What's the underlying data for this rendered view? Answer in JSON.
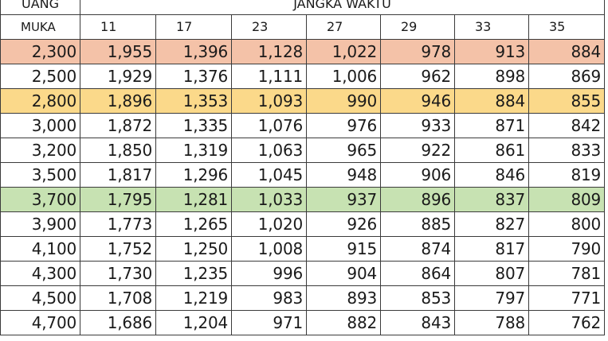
{
  "header": {
    "label_top": "UANG",
    "label_bottom": "MUKA",
    "span_label": "JANGKA WAKTU",
    "terms": [
      "11",
      "17",
      "23",
      "27",
      "29",
      "33",
      "35"
    ]
  },
  "colors": {
    "salmon": "#f4c2a8",
    "yellow": "#fbd98a",
    "green": "#c7e2b2",
    "border": "#3b3b3b"
  },
  "rows": [
    {
      "highlight": "salmon",
      "cells": [
        "2,300",
        "1,955",
        "1,396",
        "1,128",
        "1,022",
        "978",
        "913",
        "884"
      ]
    },
    {
      "highlight": "none",
      "cells": [
        "2,500",
        "1,929",
        "1,376",
        "1,111",
        "1,006",
        "962",
        "898",
        "869"
      ]
    },
    {
      "highlight": "yellow",
      "cells": [
        "2,800",
        "1,896",
        "1,353",
        "1,093",
        "990",
        "946",
        "884",
        "855"
      ]
    },
    {
      "highlight": "none",
      "cells": [
        "3,000",
        "1,872",
        "1,335",
        "1,076",
        "976",
        "933",
        "871",
        "842"
      ]
    },
    {
      "highlight": "none",
      "cells": [
        "3,200",
        "1,850",
        "1,319",
        "1,063",
        "965",
        "922",
        "861",
        "833"
      ]
    },
    {
      "highlight": "none",
      "cells": [
        "3,500",
        "1,817",
        "1,296",
        "1,045",
        "948",
        "906",
        "846",
        "819"
      ]
    },
    {
      "highlight": "green",
      "cells": [
        "3,700",
        "1,795",
        "1,281",
        "1,033",
        "937",
        "896",
        "837",
        "809"
      ]
    },
    {
      "highlight": "none",
      "cells": [
        "3,900",
        "1,773",
        "1,265",
        "1,020",
        "926",
        "885",
        "827",
        "800"
      ]
    },
    {
      "highlight": "none",
      "cells": [
        "4,100",
        "1,752",
        "1,250",
        "1,008",
        "915",
        "874",
        "817",
        "790"
      ]
    },
    {
      "highlight": "none",
      "cells": [
        "4,300",
        "1,730",
        "1,235",
        "996",
        "904",
        "864",
        "807",
        "781"
      ]
    },
    {
      "highlight": "none",
      "cells": [
        "4,500",
        "1,708",
        "1,219",
        "983",
        "893",
        "853",
        "797",
        "771"
      ]
    },
    {
      "highlight": "none",
      "cells": [
        "4,700",
        "1,686",
        "1,204",
        "971",
        "882",
        "843",
        "788",
        "762"
      ]
    }
  ]
}
